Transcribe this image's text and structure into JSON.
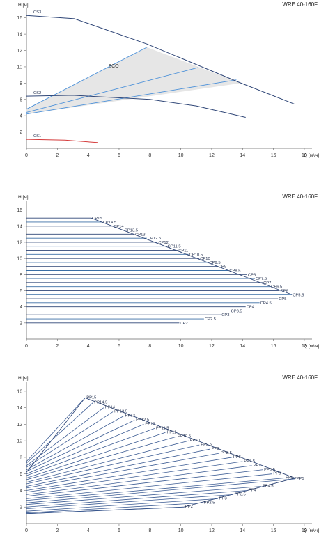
{
  "chart_data": [
    {
      "type": "line",
      "title": "WRE 40-160F",
      "ylabel": "H [м]",
      "xlabel": "Q [м³/ч]",
      "xlim": [
        0,
        18.5
      ],
      "ylim": [
        0,
        17
      ],
      "xticks": [
        0,
        2,
        4,
        6,
        8,
        10,
        12,
        14,
        16,
        18
      ],
      "yticks": [
        2,
        4,
        6,
        8,
        10,
        12,
        14,
        16
      ],
      "colors": {
        "curve": "#2f4677",
        "eco_line": "#4a90d9",
        "eco_fill": "#e6e6e6",
        "cs1": "#d43a3a"
      },
      "annotations": {
        "eco": "ECO"
      },
      "eco_region": {
        "polygon": [
          [
            0,
            4.8
          ],
          [
            7.8,
            12.4
          ],
          [
            13.9,
            8.0
          ],
          [
            0,
            4.2
          ]
        ]
      },
      "eco_lines": [
        [
          [
            0,
            4.8
          ],
          [
            7.8,
            12.4
          ]
        ],
        [
          [
            0,
            4.4
          ],
          [
            11.1,
            9.9
          ]
        ],
        [
          [
            0,
            4.2
          ],
          [
            13.6,
            8.4
          ]
        ]
      ],
      "series": [
        {
          "name": "CS3",
          "color": "curve",
          "points": [
            [
              0,
              16.3
            ],
            [
              3.1,
              15.9
            ],
            [
              7.8,
              12.8
            ],
            [
              13.9,
              8.0
            ],
            [
              17.4,
              5.4
            ]
          ]
        },
        {
          "name": "CS2",
          "color": "curve",
          "points": [
            [
              0,
              6.4
            ],
            [
              3.0,
              6.5
            ],
            [
              8.0,
              6.0
            ],
            [
              11.0,
              5.2
            ],
            [
              14.2,
              3.8
            ]
          ]
        },
        {
          "name": "CS1",
          "color": "cs1",
          "points": [
            [
              0,
              1.1
            ],
            [
              2.5,
              1.0
            ],
            [
              4.6,
              0.7
            ]
          ]
        }
      ]
    },
    {
      "type": "line",
      "title": "WRE 40-160F",
      "ylabel": "H [м]",
      "xlabel": "Q [м³/ч]",
      "xlim": [
        0,
        18.5
      ],
      "ylim": [
        0,
        17
      ],
      "xticks": [
        0,
        2,
        4,
        6,
        8,
        10,
        12,
        14,
        16,
        18
      ],
      "yticks": [
        2,
        4,
        6,
        8,
        10,
        12,
        14,
        16
      ],
      "envelope": [
        [
          4.2,
          15
        ],
        [
          17.2,
          5.5
        ]
      ],
      "series": [
        {
          "name": "CP15",
          "h": 15,
          "q_end": 4.2
        },
        {
          "name": "CP14.5",
          "h": 14.5,
          "q_end": 4.9
        },
        {
          "name": "CP14",
          "h": 14,
          "q_end": 5.6
        },
        {
          "name": "CP13.5",
          "h": 13.5,
          "q_end": 6.3
        },
        {
          "name": "CP13",
          "h": 13,
          "q_end": 7.0
        },
        {
          "name": "CP12.5",
          "h": 12.5,
          "q_end": 7.8
        },
        {
          "name": "CP12",
          "h": 12,
          "q_end": 8.5
        },
        {
          "name": "CP11.5",
          "h": 11.5,
          "q_end": 9.1
        },
        {
          "name": "CP11",
          "h": 11,
          "q_end": 9.8
        },
        {
          "name": "CP10.5",
          "h": 10.5,
          "q_end": 10.5
        },
        {
          "name": "CP10",
          "h": 10,
          "q_end": 11.2
        },
        {
          "name": "CP9.5",
          "h": 9.5,
          "q_end": 11.8
        },
        {
          "name": "CP9",
          "h": 9,
          "q_end": 12.4
        },
        {
          "name": "CP8.5",
          "h": 8.5,
          "q_end": 13.1
        },
        {
          "name": "CP8",
          "h": 8,
          "q_end": 14.3
        },
        {
          "name": "CP7.5",
          "h": 7.5,
          "q_end": 14.8
        },
        {
          "name": "CP7",
          "h": 7,
          "q_end": 15.3
        },
        {
          "name": "CP6.5",
          "h": 6.5,
          "q_end": 15.8
        },
        {
          "name": "CP6",
          "h": 6,
          "q_end": 16.4
        },
        {
          "name": "CP5.5",
          "h": 5.5,
          "q_end": 17.2
        },
        {
          "name": "CP5",
          "h": 5,
          "q_end": 16.3
        },
        {
          "name": "CP4.5",
          "h": 4.5,
          "q_end": 15.1
        },
        {
          "name": "CP4",
          "h": 4,
          "q_end": 14.2
        },
        {
          "name": "CP3.5",
          "h": 3.5,
          "q_end": 13.2
        },
        {
          "name": "CP3",
          "h": 3,
          "q_end": 12.6
        },
        {
          "name": "CP2.5",
          "h": 2.5,
          "q_end": 11.5
        },
        {
          "name": "CP2",
          "h": 2,
          "q_end": 9.9
        }
      ]
    },
    {
      "type": "line",
      "title": "WRE 40-160F",
      "ylabel": "H [м]",
      "xlabel": "Q [м³/ч]",
      "xlim": [
        0,
        18.5
      ],
      "ylim": [
        0,
        17
      ],
      "xticks": [
        0,
        2,
        4,
        6,
        8,
        10,
        12,
        14,
        16,
        18
      ],
      "yticks": [
        2,
        4,
        6,
        8,
        10,
        12,
        14,
        16
      ],
      "envelope": [
        [
          0,
          6.2
        ],
        [
          3.8,
          15.2
        ],
        [
          17.4,
          5.5
        ],
        [
          10.2,
          2.0
        ],
        [
          0,
          1.2
        ]
      ],
      "series": [
        {
          "name": "PP15",
          "h0": 7.5,
          "end": [
            3.8,
            15.2
          ]
        },
        {
          "name": "PP14.5",
          "h0": 7.3,
          "end": [
            4.3,
            14.6
          ]
        },
        {
          "name": "PP14",
          "h0": 7.0,
          "end": [
            5.0,
            14.0
          ]
        },
        {
          "name": "PP13.5",
          "h0": 6.8,
          "end": [
            5.6,
            13.5
          ]
        },
        {
          "name": "PP13",
          "h0": 6.5,
          "end": [
            6.3,
            13.0
          ]
        },
        {
          "name": "PP12.5",
          "h0": 6.3,
          "end": [
            7.0,
            12.5
          ]
        },
        {
          "name": "PP12",
          "h0": 6.0,
          "end": [
            7.6,
            12.0
          ]
        },
        {
          "name": "PP11.5",
          "h0": 5.8,
          "end": [
            8.3,
            11.5
          ]
        },
        {
          "name": "PP11",
          "h0": 5.5,
          "end": [
            9.0,
            11.0
          ]
        },
        {
          "name": "PP10.5",
          "h0": 5.3,
          "end": [
            9.7,
            10.5
          ]
        },
        {
          "name": "PP10",
          "h0": 5.0,
          "end": [
            10.5,
            10.0
          ]
        },
        {
          "name": "PP9.5",
          "h0": 4.8,
          "end": [
            11.2,
            9.5
          ]
        },
        {
          "name": "PP9",
          "h0": 4.5,
          "end": [
            11.9,
            9.0
          ]
        },
        {
          "name": "PP8.5",
          "h0": 4.3,
          "end": [
            12.5,
            8.5
          ]
        },
        {
          "name": "PP8",
          "h0": 4.0,
          "end": [
            13.3,
            8.0
          ]
        },
        {
          "name": "PP7.5",
          "h0": 3.8,
          "end": [
            14.0,
            7.5
          ]
        },
        {
          "name": "PP7",
          "h0": 3.5,
          "end": [
            14.6,
            7.0
          ]
        },
        {
          "name": "PP6.5",
          "h0": 3.3,
          "end": [
            15.3,
            6.5
          ]
        },
        {
          "name": "PP6",
          "h0": 3.0,
          "end": [
            15.9,
            6.0
          ]
        },
        {
          "name": "PP5.5",
          "h0": 2.8,
          "end": [
            16.7,
            5.5
          ]
        },
        {
          "name": "PP5",
          "h0": 2.5,
          "end": [
            17.4,
            5.4
          ]
        },
        {
          "name": "PP4.5",
          "h0": 2.3,
          "end": [
            15.2,
            4.5
          ]
        },
        {
          "name": "PP4",
          "h0": 2.0,
          "end": [
            14.3,
            4.0
          ]
        },
        {
          "name": "PP3.5",
          "h0": 1.8,
          "end": [
            13.4,
            3.5
          ]
        },
        {
          "name": "PP3",
          "h0": 1.5,
          "end": [
            12.4,
            3.0
          ]
        },
        {
          "name": "PP2.5",
          "h0": 1.3,
          "end": [
            11.4,
            2.5
          ]
        },
        {
          "name": "PP2",
          "h0": 1.2,
          "end": [
            10.2,
            2.0
          ]
        }
      ]
    }
  ]
}
